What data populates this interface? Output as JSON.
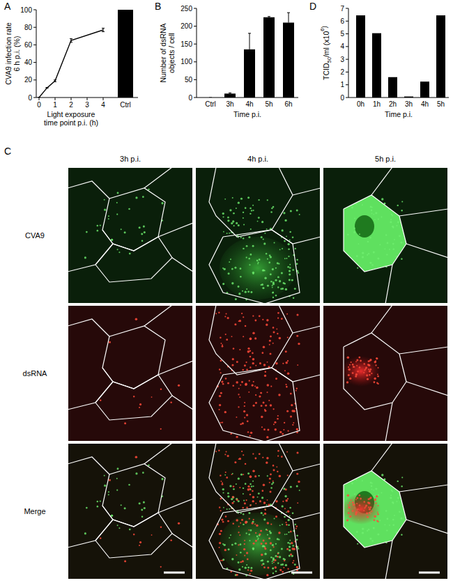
{
  "chart_data": [
    {
      "type": "line",
      "title": "A",
      "x_label": [
        "Light exposure",
        "time point p.i. (h)"
      ],
      "y_label": [
        "CVA9 infection rate",
        "6 h p.i. (%)"
      ],
      "xlim": [
        0,
        4
      ],
      "xticks": [
        0,
        1,
        2,
        3,
        4
      ],
      "ylim": [
        0,
        100
      ],
      "yticks": [
        0,
        20,
        40,
        60,
        80,
        100
      ],
      "series": [
        {
          "type": "line",
          "color": "#000000",
          "marker": "none",
          "x": [
            0,
            0.5,
            1,
            2,
            4
          ],
          "values": [
            0,
            11,
            19,
            65,
            77
          ],
          "errors": [
            0.3,
            0.5,
            1,
            2,
            2
          ]
        },
        {
          "type": "bar",
          "color": "#000000",
          "categories": [
            "Ctrl"
          ],
          "values": [
            100
          ]
        }
      ]
    },
    {
      "type": "bar",
      "title": "B",
      "categories": [
        "Ctrl",
        "3h",
        "4h",
        "5h",
        "6h"
      ],
      "values": [
        0,
        11,
        135,
        225,
        210
      ],
      "errors": [
        0,
        2,
        45,
        2,
        28
      ],
      "color": "#000000",
      "ylim": [
        0,
        250
      ],
      "yticks": [
        0,
        50,
        100,
        150,
        200,
        250
      ],
      "x_label": "Time p.i.",
      "y_label": [
        "Number of dsRNA",
        "objects / cell"
      ]
    },
    {
      "type": "bar",
      "title": "D",
      "categories": [
        "0h",
        "1h",
        "2h",
        "3h",
        "4h",
        "5h"
      ],
      "values": [
        6.45,
        5.05,
        1.6,
        0.08,
        1.25,
        6.45
      ],
      "color": "#000000",
      "ylim": [
        0,
        7
      ],
      "yticks": [
        0,
        1,
        2,
        3,
        4,
        5,
        6,
        7
      ],
      "x_label": "Time p.i.",
      "y_label": [
        "TCID",
        "50",
        "/ml (x10",
        "6",
        ")"
      ]
    }
  ],
  "panel_c": {
    "label": "C",
    "columns": [
      "3h p.i.",
      "4h p.i.",
      "5h p.i."
    ],
    "rows": [
      "CVA9",
      "dsRNA",
      "Merge"
    ]
  }
}
